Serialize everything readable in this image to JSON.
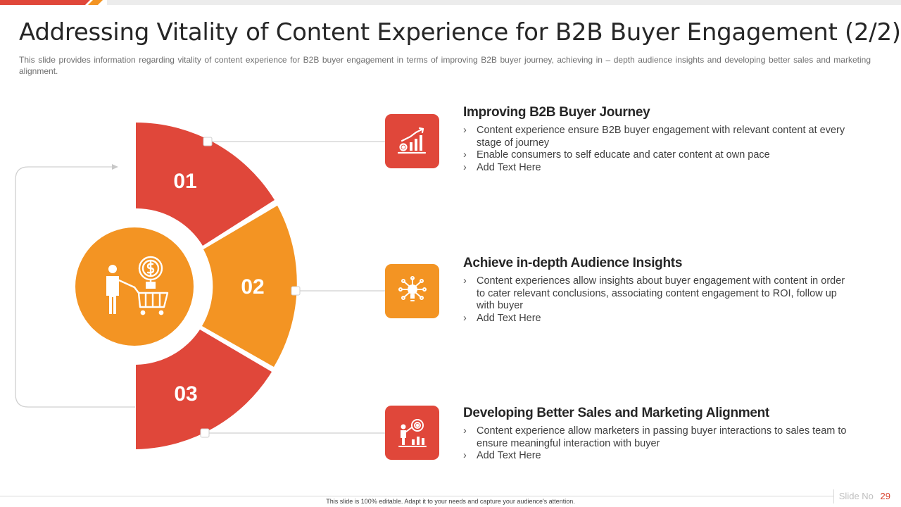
{
  "title": "Addressing Vitality of Content Experience for B2B Buyer Engagement  (2/2)",
  "subtitle": "This slide provides information regarding vitality of content experience for B2B buyer engagement in terms of improving B2B buyer journey, achieving in – depth audience insights and developing better sales and marketing alignment.",
  "colors": {
    "red": "#E0473A",
    "orange": "#F39423",
    "light_gray": "#cfcfcf"
  },
  "center_icon": "buyer-cart-dollar-icon",
  "segments": [
    {
      "number": "01",
      "color": "#E0473A"
    },
    {
      "number": "02",
      "color": "#F39423"
    },
    {
      "number": "03",
      "color": "#E0473A"
    }
  ],
  "items": [
    {
      "icon": "growth-chart-gear-icon",
      "heading": "Improving B2B Buyer Journey",
      "bullets": [
        "Content experience ensure B2B buyer engagement with relevant content at every stage of journey",
        "Enable consumers to self educate and cater content at own pace",
        "Add Text Here"
      ]
    },
    {
      "icon": "lightbulb-network-icon",
      "heading": "Achieve in-depth Audience Insights",
      "bullets": [
        "Content experiences allow insights about buyer engagement with content in order to cater relevant conclusions, associating content engagement to ROI, follow up with buyer",
        "Add Text Here"
      ]
    },
    {
      "icon": "presenter-target-icon",
      "heading": "Developing Better Sales and Marketing Alignment",
      "bullets": [
        "Content experience allow marketers in passing buyer interactions to sales team to ensure meaningful interaction with buyer",
        "Add Text Here"
      ]
    }
  ],
  "footer": {
    "note": "This slide is 100% editable. Adapt it to your needs and capture your audience's attention.",
    "slide_label": "Slide No",
    "slide_number": "29"
  }
}
